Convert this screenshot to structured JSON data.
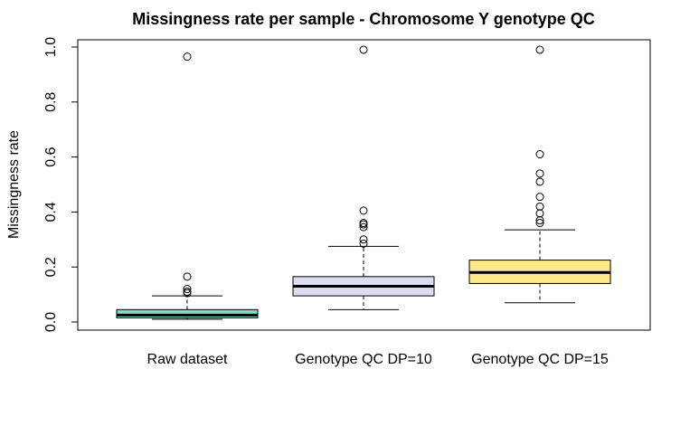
{
  "chart_data": {
    "type": "boxplot",
    "title": "Missingness rate per sample - Chromosome Y genotype QC",
    "xlabel": "",
    "ylabel": "Missingness rate",
    "ylim": [
      -0.03,
      1.02
    ],
    "yticks": [
      0.0,
      0.2,
      0.4,
      0.6,
      0.8,
      1.0
    ],
    "ytick_labels": [
      "0.0",
      "0.2",
      "0.4",
      "0.6",
      "0.8",
      "1.0"
    ],
    "grid": false,
    "legend": "none",
    "categories": [
      "Raw dataset",
      "Genotype QC DP=10",
      "Genotype QC DP=15"
    ],
    "boxes": [
      {
        "category": "Raw dataset",
        "color": "#8fd3c7",
        "whisker_low": 0.01,
        "q1": 0.015,
        "median": 0.025,
        "q3": 0.045,
        "whisker_high": 0.095,
        "outliers": [
          0.105,
          0.11,
          0.12,
          0.165,
          0.965
        ]
      },
      {
        "category": "Genotype QC DP=10",
        "color": "#dcdcf2",
        "whisker_low": 0.045,
        "q1": 0.095,
        "median": 0.13,
        "q3": 0.165,
        "whisker_high": 0.275,
        "outliers": [
          0.285,
          0.3,
          0.345,
          0.355,
          0.36,
          0.405,
          0.99
        ]
      },
      {
        "category": "Genotype QC DP=15",
        "color": "#ffe88a",
        "whisker_low": 0.07,
        "q1": 0.14,
        "median": 0.18,
        "q3": 0.225,
        "whisker_high": 0.335,
        "outliers": [
          0.36,
          0.37,
          0.395,
          0.42,
          0.455,
          0.51,
          0.54,
          0.61,
          0.99
        ]
      }
    ]
  }
}
